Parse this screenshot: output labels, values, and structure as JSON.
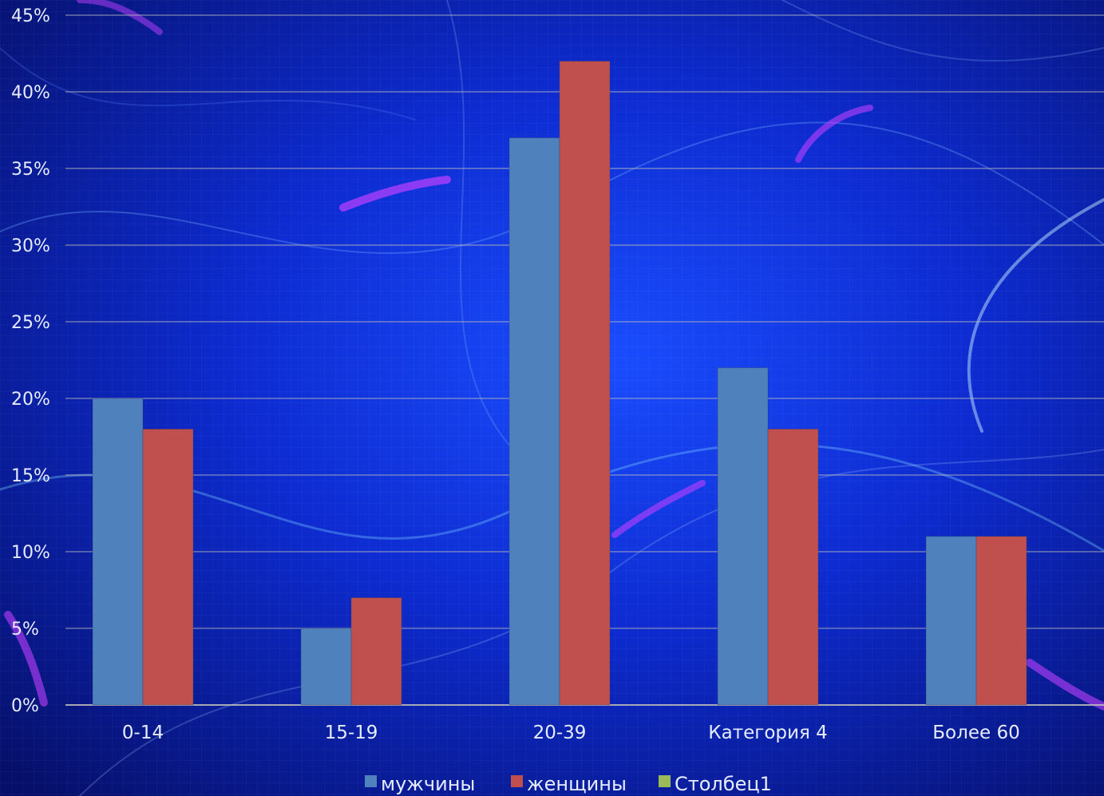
{
  "colors": {
    "men": "#4f81bd",
    "women": "#c0504d",
    "col1": "#9bbb59",
    "grid": "#b8b8b8",
    "text": "#e6ecff"
  },
  "chart_data": {
    "type": "bar",
    "title": "",
    "xlabel": "",
    "ylabel": "",
    "categories": [
      "0-14",
      "15-19",
      "20-39",
      "Категория 4",
      "Более 60"
    ],
    "series": [
      {
        "name": "мужчины",
        "color": "#4f81bd",
        "values": [
          20,
          5,
          37,
          22,
          11
        ]
      },
      {
        "name": "женщины",
        "color": "#c0504d",
        "values": [
          18,
          7,
          42,
          18,
          11
        ]
      },
      {
        "name": "Столбец1",
        "color": "#9bbb59",
        "values": [
          null,
          null,
          null,
          null,
          null
        ]
      }
    ],
    "ylim": [
      0,
      45
    ],
    "yticks": [
      0,
      5,
      10,
      15,
      20,
      25,
      30,
      35,
      40,
      45
    ],
    "ytick_labels": [
      "0%",
      "5%",
      "10%",
      "15%",
      "20%",
      "25%",
      "30%",
      "35%",
      "40%",
      "45%"
    ],
    "grid": true,
    "legend": "bottom"
  }
}
